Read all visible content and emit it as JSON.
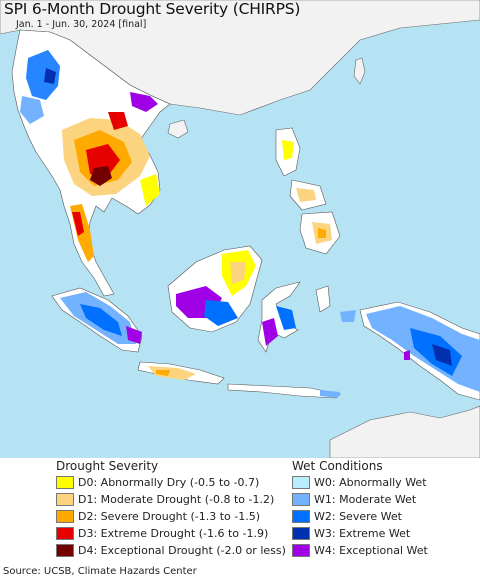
{
  "title": "SPI 6-Month Drought Severity (CHIRPS)",
  "subtitle": "Jan. 1 - Jun. 30, 2024 [final]",
  "legend": {
    "drought": {
      "heading": "Drought Severity",
      "items": [
        {
          "label": "D0: Abnormally Dry (-0.5 to -0.7)",
          "color": "#ffff00"
        },
        {
          "label": "D1: Moderate Drought (-0.8 to -1.2)",
          "color": "#fcd37f"
        },
        {
          "label": "D2: Severe Drought (-1.3 to -1.5)",
          "color": "#ffaa00"
        },
        {
          "label": "D3: Extreme Drought (-1.6 to -1.9)",
          "color": "#e60000"
        },
        {
          "label": "D4: Exceptional Drought (-2.0 or less)",
          "color": "#730000"
        }
      ]
    },
    "wet": {
      "heading": "Wet Conditions",
      "items": [
        {
          "label": "W0: Abnormally Wet",
          "color": "#b9eeff"
        },
        {
          "label": "W1: Moderate Wet",
          "color": "#73b2ff"
        },
        {
          "label": "W2: Severe Wet",
          "color": "#0070ff"
        },
        {
          "label": "W3: Extreme Wet",
          "color": "#0030b0"
        },
        {
          "label": "W4: Exceptional Wet",
          "color": "#a000e6"
        }
      ]
    }
  },
  "colors": {
    "ocean": "#b6e3f3",
    "land_nodata": "#f2f2f2",
    "land_normal": "#ffffff",
    "borders": "#555555"
  },
  "source": "Source: UCSB, Climate Hazards Center"
}
